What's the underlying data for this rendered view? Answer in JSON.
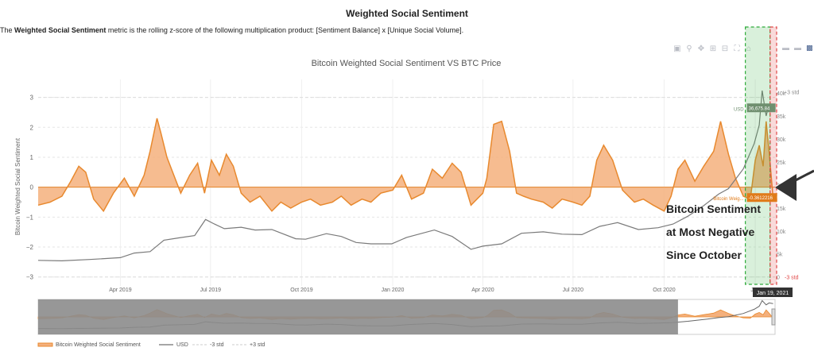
{
  "header": {
    "title": "Weighted Social Sentiment",
    "desc_prefix": "The ",
    "desc_bold": "Weighted Social Sentiment",
    "desc_rest": " metric is the rolling z-score of the following multiplication product: [Sentiment Balance] x [Unique Social Volume]."
  },
  "modebar": {
    "icons": [
      "camera-icon",
      "zoom-icon",
      "pan-icon",
      "zoom-in-icon",
      "zoom-out-icon",
      "autoscale-icon",
      "home-icon"
    ],
    "right_icons": [
      "compare-icon",
      "hover-icon",
      "logo-icon"
    ]
  },
  "annotation": {
    "line1": "Bitcoin Sentiment",
    "line2": "at Most Negative",
    "line3": "Since October"
  },
  "colors": {
    "sentiment_fill": "#f4b07d",
    "sentiment_line": "#e8892e",
    "price_line": "#7a7a7a",
    "highlight_green": "#2eaa3a",
    "highlight_red": "#e04545",
    "rangeslider_bg": "#8c8c8c",
    "usd_label_bg": "#6f8f6f",
    "sentiment_label_bg": "#e07b1a"
  },
  "chart_data": {
    "type": "area",
    "title": "Bitcoin Weighted Social Sentiment VS BTC Price",
    "ylabel": "Bitcoin Weighted Social Sentiment",
    "y2label": "BTC",
    "ylim": [
      -3.3,
      3.6
    ],
    "y_ticks": [
      "3",
      "2",
      "1",
      "0",
      "−1",
      "−2",
      "−3"
    ],
    "y_tick_values": [
      3,
      2,
      1,
      0,
      -1,
      -2,
      -3
    ],
    "y2_ticks": [
      "40k",
      "35k",
      "30k",
      "25k",
      "20k",
      "15k",
      "10k",
      "5k",
      "0"
    ],
    "x_range": [
      "2019-01-08",
      "2021-01-21"
    ],
    "x_ticks": [
      {
        "date": "2019-04-01",
        "label": "Apr 2019"
      },
      {
        "date": "2019-07-01",
        "label": "Jul 2019"
      },
      {
        "date": "2019-10-01",
        "label": "Oct 2019"
      },
      {
        "date": "2020-01-01",
        "label": "Jan 2020"
      },
      {
        "date": "2020-04-01",
        "label": "Apr 2020"
      },
      {
        "date": "2020-07-01",
        "label": "Jul 2020"
      },
      {
        "date": "2020-10-01",
        "label": "Oct 2020"
      },
      {
        "date": "2021-01-01",
        "label": "Jan"
      }
    ],
    "legend": {
      "position": "bottom-left",
      "items": [
        "Bitcoin Weighted Social Sentiment",
        "USD",
        "-3 std",
        "+3 std"
      ]
    },
    "markers": {
      "plus3": "+3 std",
      "minus3": "-3 std",
      "usd_label": "USD",
      "usd_value": "36,675.84",
      "sent_label": "Bitcoin Weig...",
      "sent_value": "-0.3612216",
      "hover_date": "Jan 19, 2021"
    },
    "series": [
      {
        "name": "Bitcoin Weighted Social Sentiment",
        "dates": [
          "2019-01-08",
          "2019-01-20",
          "2019-02-01",
          "2019-02-10",
          "2019-02-18",
          "2019-02-25",
          "2019-03-05",
          "2019-03-15",
          "2019-03-25",
          "2019-04-05",
          "2019-04-15",
          "2019-04-25",
          "2019-05-01",
          "2019-05-08",
          "2019-05-12",
          "2019-05-18",
          "2019-05-25",
          "2019-06-01",
          "2019-06-10",
          "2019-06-18",
          "2019-06-25",
          "2019-07-02",
          "2019-07-10",
          "2019-07-17",
          "2019-07-24",
          "2019-08-01",
          "2019-08-10",
          "2019-08-20",
          "2019-09-01",
          "2019-09-10",
          "2019-09-20",
          "2019-10-01",
          "2019-10-10",
          "2019-10-20",
          "2019-11-01",
          "2019-11-10",
          "2019-11-20",
          "2019-12-01",
          "2019-12-10",
          "2019-12-20",
          "2020-01-01",
          "2020-01-10",
          "2020-01-20",
          "2020-02-01",
          "2020-02-10",
          "2020-02-20",
          "2020-03-01",
          "2020-03-10",
          "2020-03-20",
          "2020-04-01",
          "2020-04-05",
          "2020-04-12",
          "2020-04-20",
          "2020-04-28",
          "2020-05-05",
          "2020-05-12",
          "2020-05-20",
          "2020-06-01",
          "2020-06-10",
          "2020-06-20",
          "2020-07-01",
          "2020-07-10",
          "2020-07-18",
          "2020-07-25",
          "2020-08-01",
          "2020-08-10",
          "2020-08-20",
          "2020-09-01",
          "2020-09-10",
          "2020-09-20",
          "2020-10-01",
          "2020-10-08",
          "2020-10-15",
          "2020-10-22",
          "2020-11-01",
          "2020-11-10",
          "2020-11-20",
          "2020-11-27",
          "2020-12-05",
          "2020-12-12",
          "2020-12-20",
          "2020-12-27",
          "2021-01-01",
          "2021-01-05",
          "2021-01-09",
          "2021-01-12",
          "2021-01-15",
          "2021-01-19"
        ],
        "values": [
          -0.6,
          -0.5,
          -0.3,
          0.2,
          0.7,
          0.5,
          -0.4,
          -0.8,
          -0.2,
          0.3,
          -0.3,
          0.4,
          1.2,
          2.3,
          1.8,
          1.0,
          0.4,
          -0.2,
          0.4,
          0.8,
          -0.2,
          0.9,
          0.4,
          1.1,
          0.7,
          -0.2,
          -0.5,
          -0.3,
          -0.8,
          -0.5,
          -0.7,
          -0.5,
          -0.4,
          -0.6,
          -0.5,
          -0.3,
          -0.6,
          -0.4,
          -0.5,
          -0.2,
          -0.1,
          0.4,
          -0.4,
          -0.2,
          0.6,
          0.3,
          0.8,
          0.5,
          -0.6,
          -0.2,
          0.3,
          2.1,
          2.2,
          1.2,
          -0.2,
          -0.3,
          -0.4,
          -0.5,
          -0.7,
          -0.4,
          -0.5,
          -0.6,
          -0.3,
          0.9,
          1.4,
          0.9,
          -0.1,
          -0.5,
          -0.4,
          -0.6,
          -0.8,
          -0.3,
          0.6,
          0.9,
          0.2,
          0.7,
          1.2,
          2.2,
          1.1,
          0.3,
          -0.3,
          -0.4,
          0.9,
          1.4,
          0.7,
          2.2,
          1.2,
          -0.36
        ]
      },
      {
        "name": "USD",
        "dates": [
          "2019-01-08",
          "2019-02-01",
          "2019-03-01",
          "2019-04-01",
          "2019-04-15",
          "2019-05-01",
          "2019-05-15",
          "2019-05-30",
          "2019-06-15",
          "2019-06-26",
          "2019-07-05",
          "2019-07-15",
          "2019-08-01",
          "2019-08-15",
          "2019-09-01",
          "2019-09-25",
          "2019-10-05",
          "2019-10-26",
          "2019-11-10",
          "2019-11-25",
          "2019-12-10",
          "2019-12-31",
          "2020-01-15",
          "2020-02-12",
          "2020-03-01",
          "2020-03-12",
          "2020-03-20",
          "2020-04-01",
          "2020-04-20",
          "2020-05-10",
          "2020-06-01",
          "2020-06-20",
          "2020-07-10",
          "2020-07-28",
          "2020-08-15",
          "2020-09-05",
          "2020-09-25",
          "2020-10-10",
          "2020-10-25",
          "2020-11-10",
          "2020-11-25",
          "2020-12-05",
          "2020-12-20",
          "2020-12-31",
          "2021-01-05",
          "2021-01-08",
          "2021-01-12",
          "2021-01-15",
          "2021-01-19"
        ],
        "values": [
          3600,
          3500,
          3800,
          4200,
          5200,
          5500,
          8000,
          8500,
          9000,
          12500,
          11500,
          10500,
          10800,
          10200,
          10300,
          8300,
          8200,
          9400,
          8800,
          7500,
          7200,
          7200,
          8600,
          10200,
          8800,
          7200,
          6000,
          6700,
          7200,
          9500,
          9800,
          9300,
          9200,
          11000,
          11800,
          10300,
          10700,
          11500,
          13200,
          15500,
          18000,
          19200,
          23500,
          29000,
          33000,
          40500,
          35000,
          37500,
          36675
        ]
      }
    ]
  }
}
